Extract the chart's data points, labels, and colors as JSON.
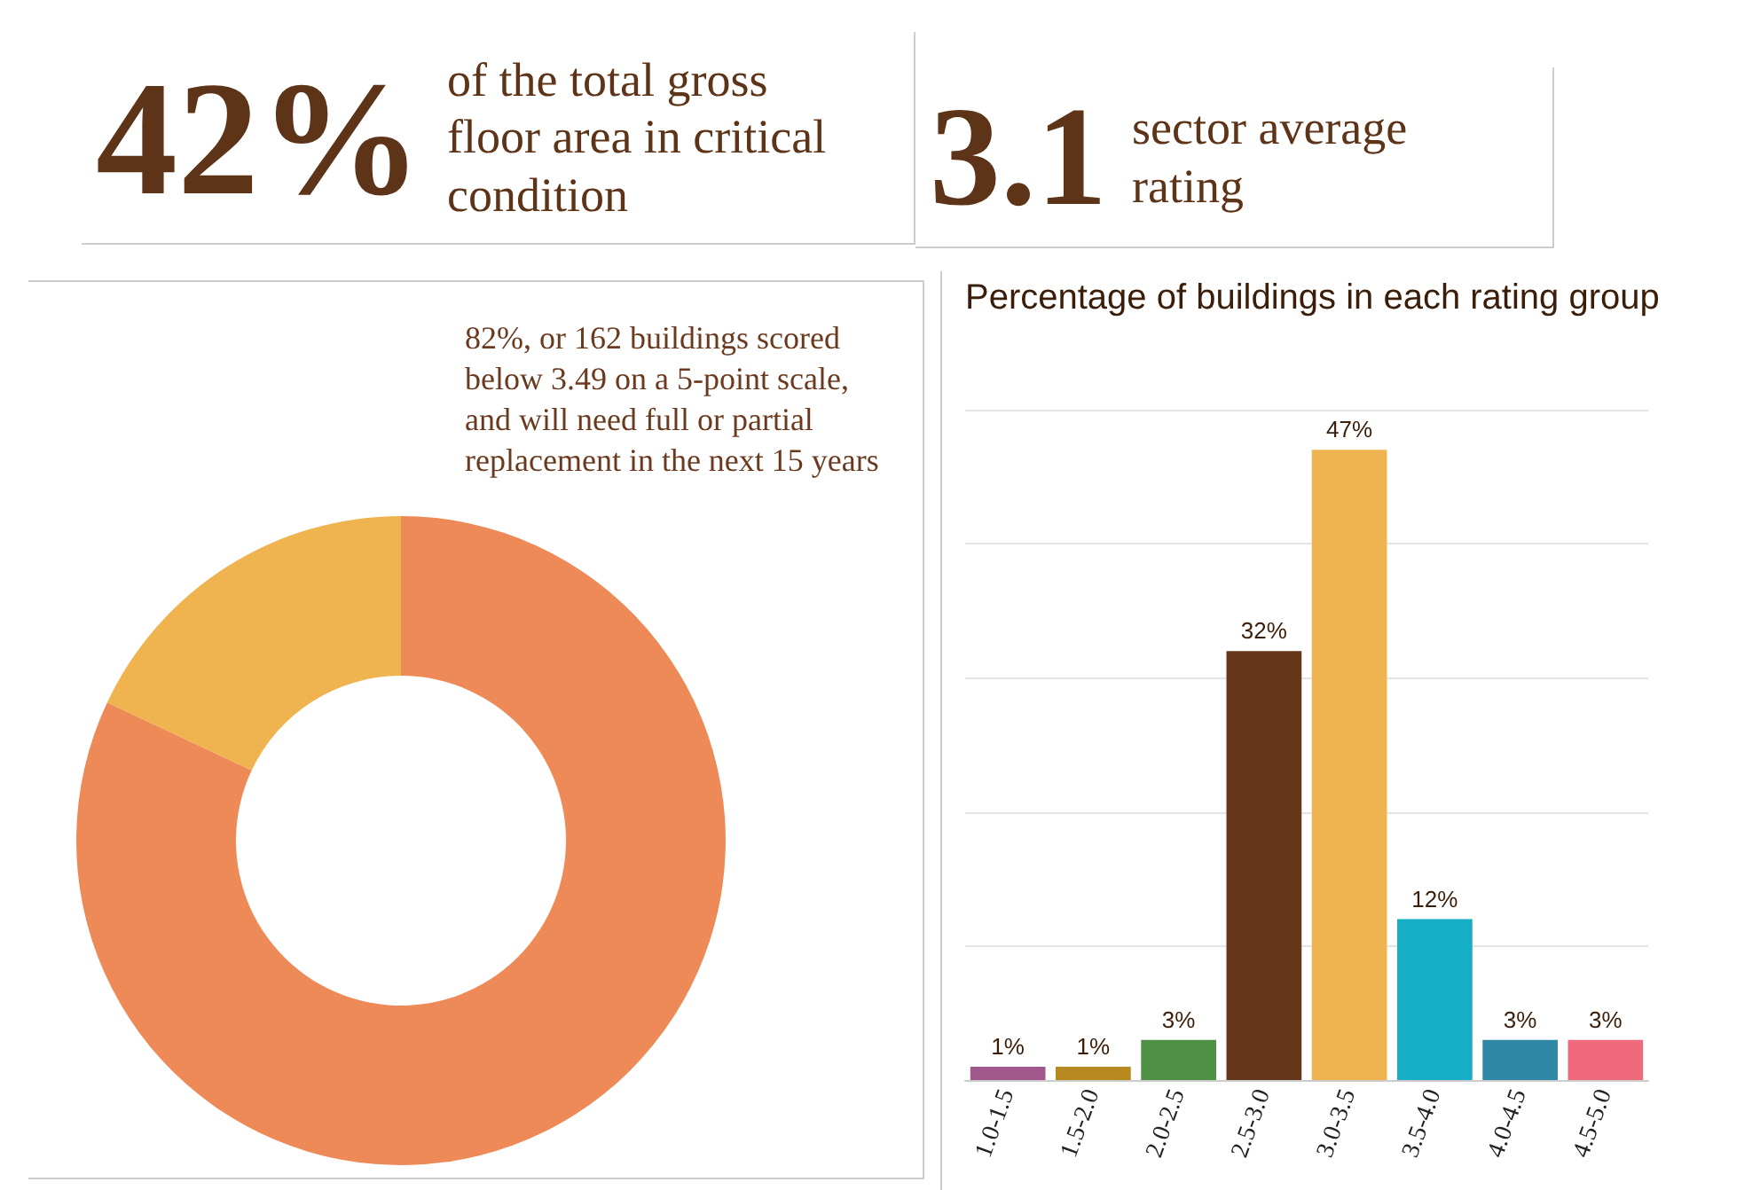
{
  "chart_data": [
    {
      "type": "other",
      "title": "42%",
      "subtitle": "of the total gross floor area in critical condition"
    },
    {
      "type": "other",
      "title": "3.1",
      "subtitle": "sector average rating"
    },
    {
      "type": "donut",
      "categories": [
        null,
        null
      ],
      "values": [
        82,
        18
      ],
      "colors": [
        "#ee8a57",
        "#efb44f"
      ],
      "annotations": [
        "82%, or 162 buildings scored below 3.49 on a 5-point scale, and will need full or partial replacement in the next 15 years"
      ]
    },
    {
      "type": "bar",
      "title": "Percentage of buildings in each rating group",
      "categories": [
        "1.0-1.5",
        "1.5-2.0",
        "2.0-2.5",
        "2.5-3.0",
        "3.0-3.5",
        "3.5-4.0",
        "4.0-4.5",
        "4.5-5.0"
      ],
      "values": [
        1,
        1,
        3,
        32,
        47,
        12,
        3,
        3
      ],
      "value_labels": [
        "1%",
        "1%",
        "3%",
        "32%",
        "47%",
        "12%",
        "3%",
        "3%"
      ],
      "colors": [
        "#a0588c",
        "#b5891f",
        "#4e9145",
        "#66361b",
        "#efb44f",
        "#15aec4",
        "#2f88a6",
        "#ef6b7c"
      ],
      "ylim": [
        0,
        50
      ],
      "yticks": [
        {
          "value": 0,
          "label": null
        },
        {
          "value": 10,
          "label": null
        },
        {
          "value": 20,
          "label": null
        },
        {
          "value": 30,
          "label": null
        },
        {
          "value": 40,
          "label": null
        },
        {
          "value": 50,
          "label": null
        }
      ],
      "grid": "y",
      "tick_labels": "x"
    }
  ]
}
